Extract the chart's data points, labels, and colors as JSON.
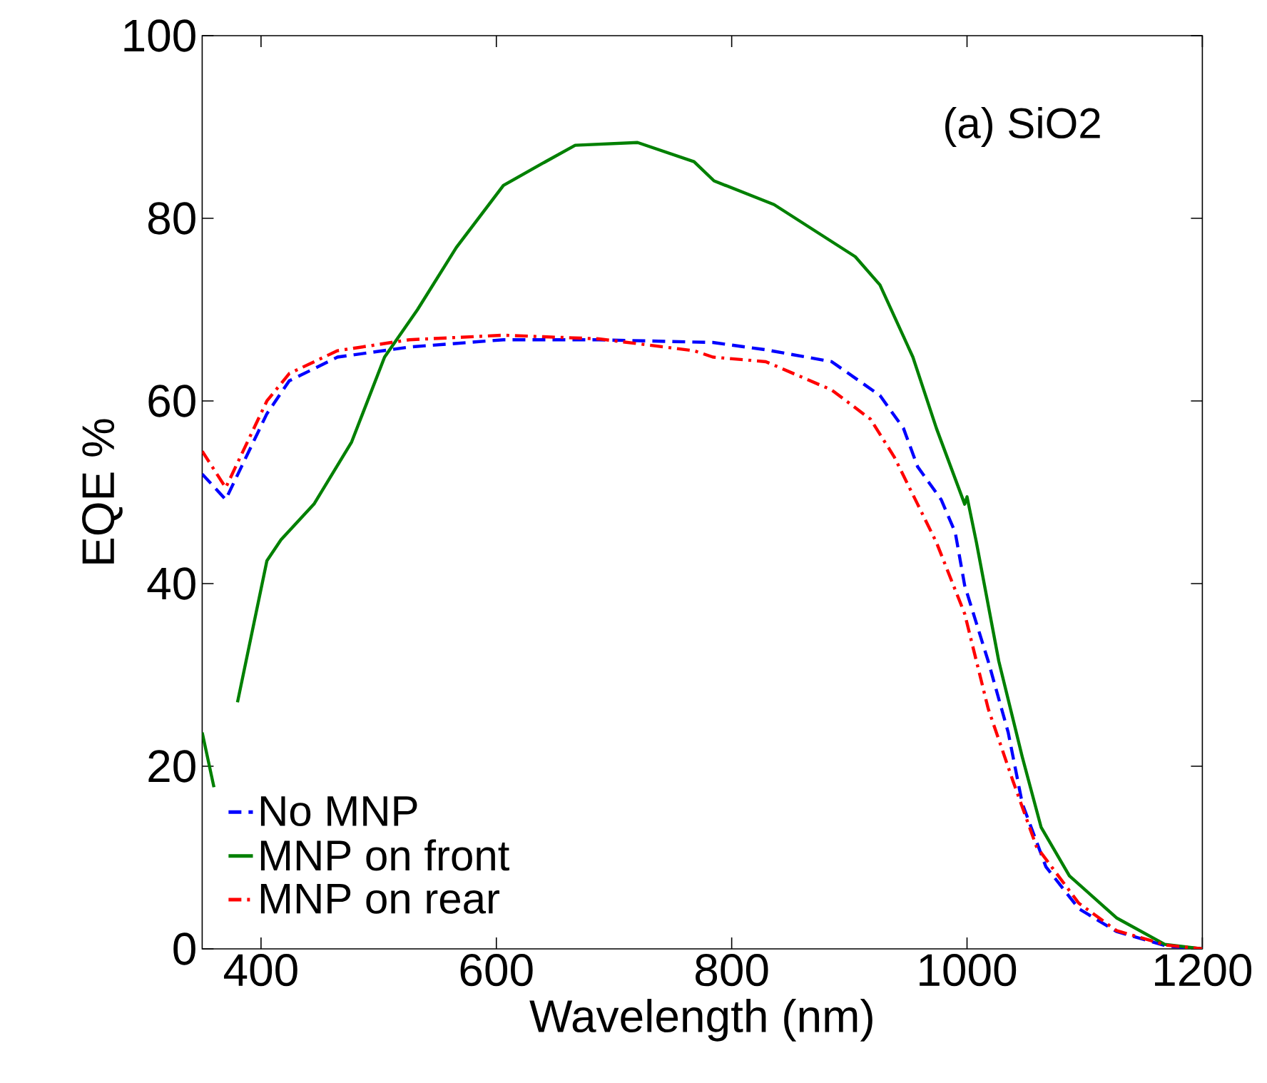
{
  "chart_data": {
    "type": "line",
    "xlabel": "Wavelength (nm)",
    "ylabel": "EQE %",
    "annotations": [
      "(a) SiO2"
    ],
    "xlim": [
      350,
      1200
    ],
    "xticks": [
      400,
      600,
      800,
      1000,
      1200
    ],
    "ylim": [
      0,
      100
    ],
    "yticks": [
      0,
      20,
      40,
      60,
      80,
      100
    ],
    "grid": false,
    "legend": "bottom left",
    "series": [
      {
        "name": "No MNP",
        "color": "#0000ff",
        "line_style": "dashed",
        "x": [
          350,
          370,
          405,
          424,
          465,
          526,
          606,
          687,
          784,
          829,
          885,
          926,
          946,
          958,
          978,
          990,
          998,
          1018,
          1035,
          1047,
          1067,
          1095,
          1127,
          1170,
          1200
        ],
        "values": [
          52,
          49.2,
          58.6,
          62.2,
          64.8,
          65.9,
          66.7,
          66.7,
          66.4,
          65.6,
          64.3,
          60.6,
          57,
          52.8,
          49.2,
          45.6,
          39.8,
          31.5,
          23.7,
          15.9,
          9,
          4.4,
          1.9,
          0.3,
          0
        ]
      },
      {
        "name": "MNP on front",
        "color": "#008000",
        "line_style": "solid",
        "x": [
          350,
          360,
          370,
          380,
          405,
          417,
          445,
          477,
          505,
          533,
          566,
          606,
          639,
          667,
          720,
          768,
          785,
          836,
          905,
          926,
          954,
          974,
          998,
          1000,
          1008,
          1027,
          1047,
          1063,
          1087,
          1127,
          1168,
          1200
        ],
        "values": [
          23.7,
          17.7,
          null,
          27,
          42.5,
          44.8,
          48.7,
          55.5,
          64.8,
          70,
          76.8,
          83.6,
          86,
          88,
          88.3,
          86.2,
          84.1,
          81.5,
          75.8,
          72.7,
          64.8,
          57,
          48.7,
          49.5,
          44.5,
          31.5,
          21,
          13.3,
          8,
          3.4,
          0.5,
          0
        ]
      },
      {
        "name": "MNP on rear",
        "color": "#ff0000",
        "line_style": "dashdot",
        "x": [
          350,
          370,
          405,
          424,
          465,
          526,
          606,
          687,
          768,
          784,
          829,
          885,
          918,
          938,
          958,
          974,
          998,
          1018,
          1039,
          1059,
          1095,
          1127,
          1170,
          1200
        ],
        "values": [
          54.5,
          50.5,
          60,
          63,
          65.5,
          66.7,
          67.2,
          66.8,
          65.5,
          64.8,
          64.3,
          61.2,
          58,
          53.9,
          48.7,
          44.5,
          36.7,
          26.3,
          18.4,
          11.2,
          5,
          2,
          0.4,
          0
        ]
      }
    ]
  }
}
